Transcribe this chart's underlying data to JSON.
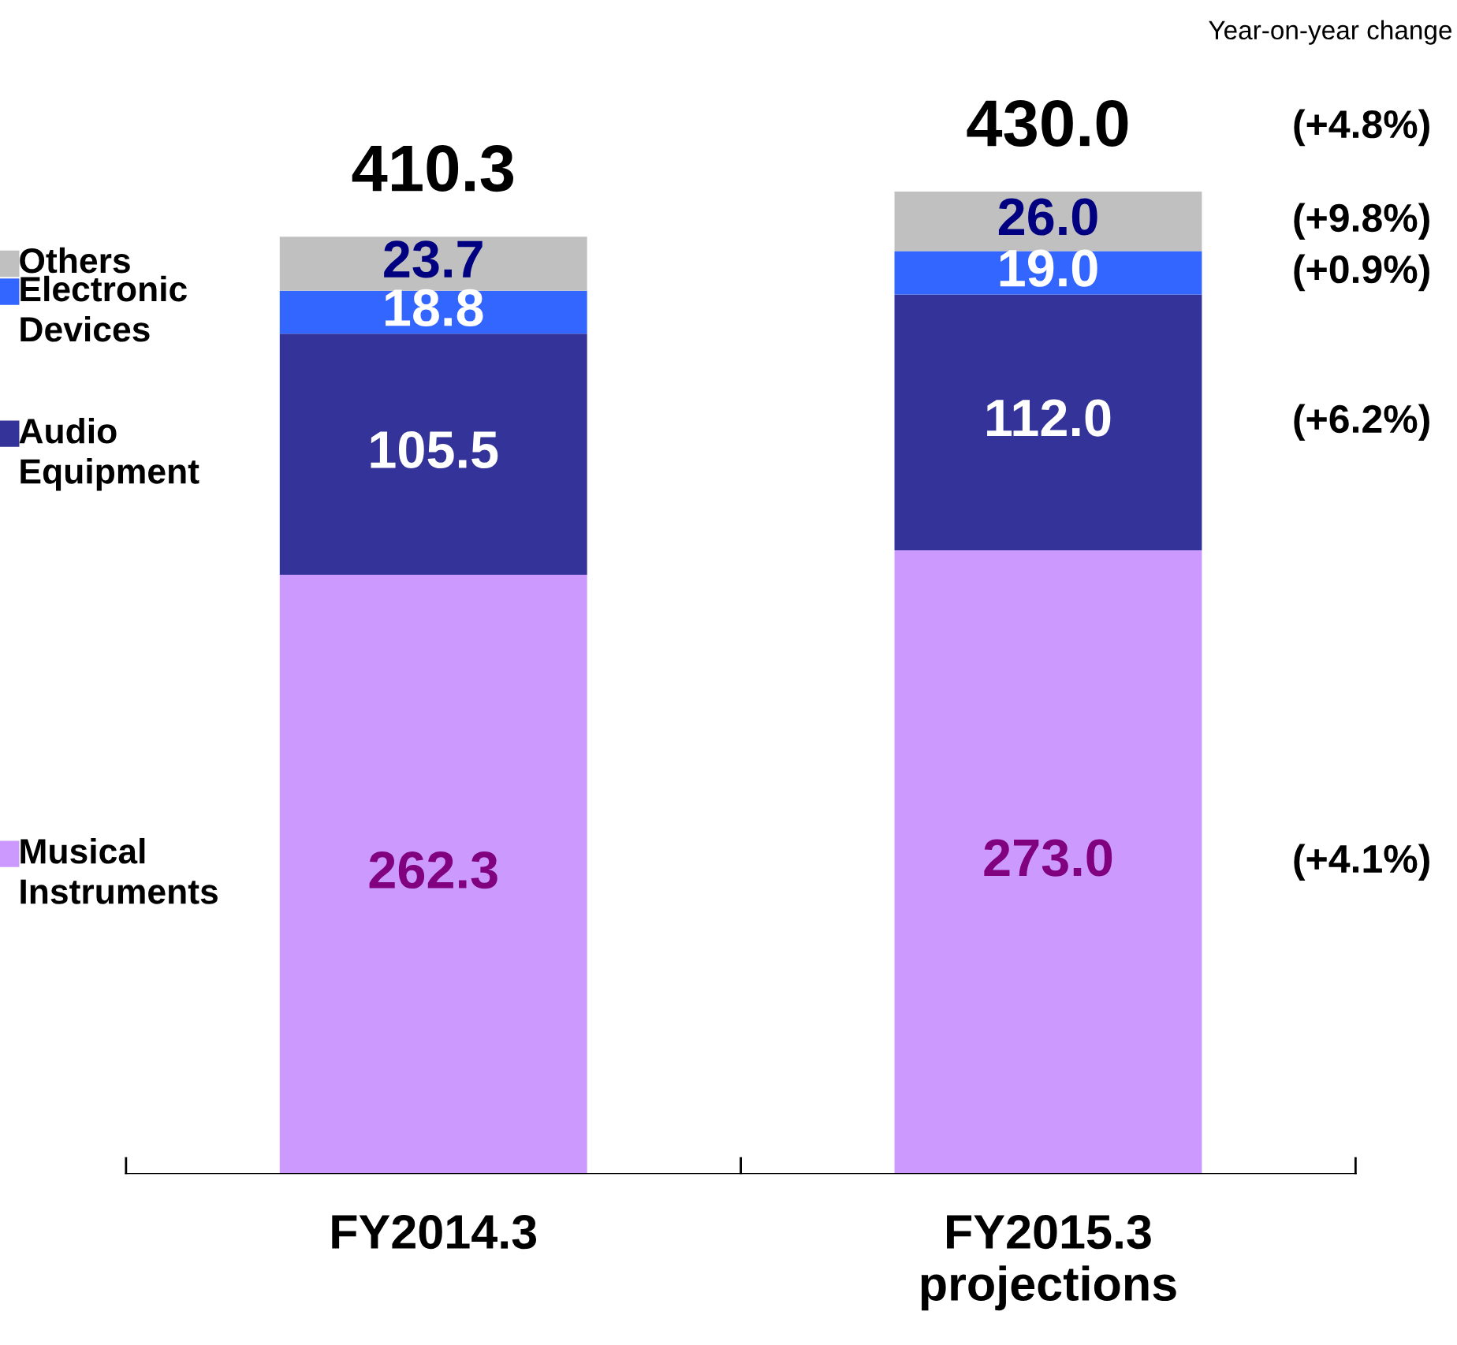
{
  "chart_data": {
    "type": "bar",
    "stacked": true,
    "categories": [
      "FY2014.3",
      "FY2015.3\nprojections"
    ],
    "series": [
      {
        "name": "Musical Instruments",
        "color": "#cc99ff",
        "values": [
          262.3,
          273.0
        ],
        "value_labels": [
          "262.3",
          "273.0"
        ]
      },
      {
        "name": "Audio Equipment",
        "color": "#333399",
        "values": [
          105.5,
          112.0
        ],
        "value_labels": [
          "105.5",
          "112.0"
        ]
      },
      {
        "name": "Electronic Devices",
        "color": "#3366ff",
        "values": [
          18.8,
          19.0
        ],
        "value_labels": [
          "18.8",
          "19.0"
        ]
      },
      {
        "name": "Others",
        "color": "#c0c0c0",
        "values": [
          23.7,
          26.0
        ],
        "value_labels": [
          "23.7",
          "26.0"
        ]
      }
    ],
    "totals": [
      "410.3",
      "430.0"
    ],
    "legend": "left",
    "tick_labels": "x",
    "grid": false,
    "annotations": [
      "Year-on-year change",
      "(+4.8%)",
      "(+9.8%)",
      "(+0.9%)",
      "(+6.2%)",
      "(+4.1%)"
    ]
  }
}
